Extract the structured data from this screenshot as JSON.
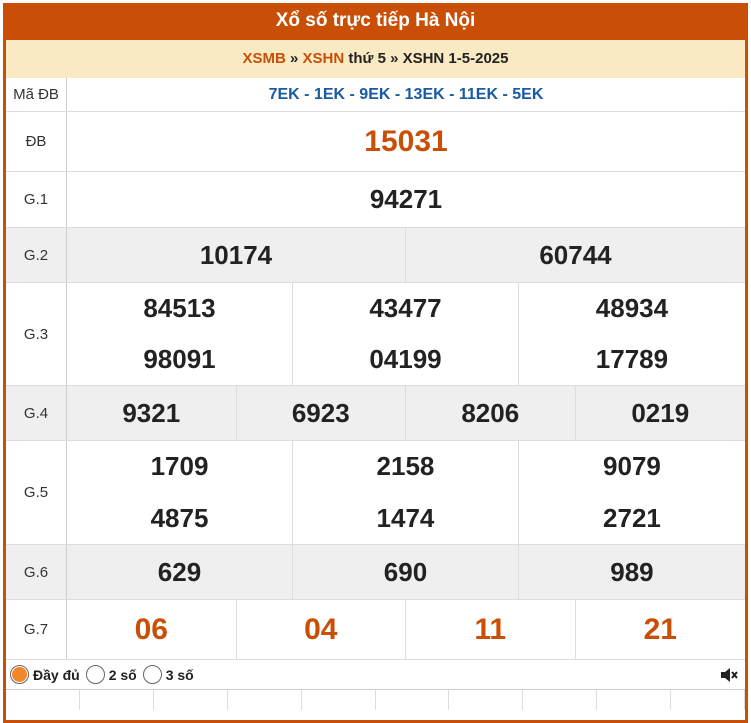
{
  "header": {
    "title": "Xổ số trực tiếp Hà Nội"
  },
  "breadcrumb": {
    "link1": "XSMB",
    "sep1": " » ",
    "link2": "XSHN",
    "text": " thứ 5 » XSHN 1-5-2025"
  },
  "madb": {
    "label": "Mã ĐB",
    "value": "7EK - 1EK - 9EK - 13EK - 11EK - 5EK"
  },
  "prizes": [
    {
      "label": "ĐB",
      "numbers": [
        "15031"
      ]
    },
    {
      "label": "G.1",
      "numbers": [
        "94271"
      ]
    },
    {
      "label": "G.2",
      "numbers": [
        "10174",
        "60744"
      ]
    },
    {
      "label": "G.3",
      "numbers": [
        "84513",
        "43477",
        "48934",
        "98091",
        "04199",
        "17789"
      ]
    },
    {
      "label": "G.4",
      "numbers": [
        "9321",
        "6923",
        "8206",
        "0219"
      ]
    },
    {
      "label": "G.5",
      "numbers": [
        "1709",
        "2158",
        "9079",
        "4875",
        "1474",
        "2721"
      ]
    },
    {
      "label": "G.6",
      "numbers": [
        "629",
        "690",
        "989"
      ]
    },
    {
      "label": "G.7",
      "numbers": [
        "06",
        "04",
        "11",
        "21"
      ]
    }
  ],
  "footer": {
    "options": [
      {
        "label": "Đầy đủ",
        "selected": true
      },
      {
        "label": "2 số",
        "selected": false
      },
      {
        "label": "3 số",
        "selected": false
      }
    ],
    "sound_icon": "speaker-muted-icon"
  },
  "colors": {
    "accent": "#c94f06",
    "breadcrumb_bg": "#faeac3",
    "code_blue": "#1a5aa0",
    "radio_selected": "#f4862a"
  }
}
